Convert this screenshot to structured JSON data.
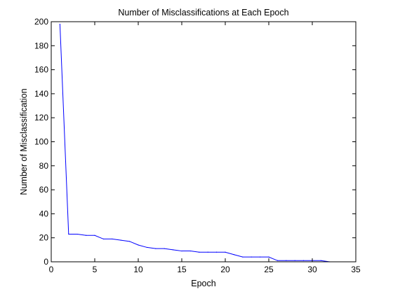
{
  "chart_data": {
    "type": "line",
    "title": "Number of Misclassifications at Each Epoch",
    "xlabel": "Epoch",
    "ylabel": "Number of Misclassification",
    "xlim": [
      0,
      35
    ],
    "ylim": [
      0,
      200
    ],
    "xticks": [
      "0",
      "5",
      "10",
      "15",
      "20",
      "25",
      "30",
      "35"
    ],
    "yticks": [
      "0",
      "20",
      "40",
      "60",
      "80",
      "100",
      "120",
      "140",
      "160",
      "180",
      "200"
    ],
    "grid": false,
    "series": [
      {
        "color": "#0000ff",
        "x": [
          1,
          2,
          3,
          4,
          5,
          6,
          7,
          8,
          9,
          10,
          11,
          12,
          13,
          14,
          15,
          16,
          17,
          18,
          19,
          20,
          21,
          22,
          23,
          24,
          25,
          26,
          27,
          28,
          29,
          30,
          31,
          32
        ],
        "y": [
          198,
          23,
          23,
          22,
          22,
          19,
          19,
          18,
          17,
          14,
          12,
          11,
          11,
          10,
          9,
          9,
          8,
          8,
          8,
          8,
          6,
          4,
          4,
          4,
          4,
          1,
          1,
          1,
          1,
          1,
          1,
          0
        ]
      }
    ]
  }
}
